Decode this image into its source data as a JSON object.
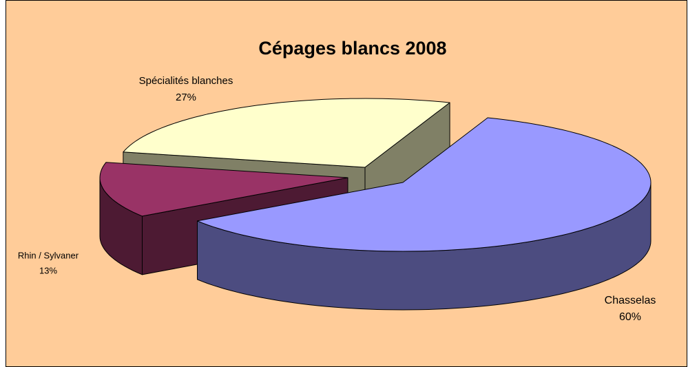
{
  "chart_data": {
    "type": "pie",
    "title": "Cépages blancs 2008",
    "categories": [
      "Chasselas",
      "Rhin / Sylvaner",
      "Spécialités blanches"
    ],
    "values": [
      60,
      13,
      27
    ],
    "value_labels": [
      "60%",
      "13%",
      "27%"
    ],
    "colors": [
      "#9999FF",
      "#993366",
      "#FFFFCC"
    ],
    "side_colors": [
      "#4C4C80",
      "#4D1A33",
      "#808066"
    ]
  }
}
